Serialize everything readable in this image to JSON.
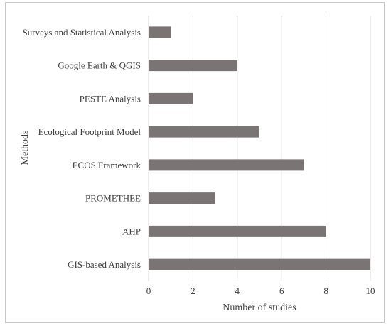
{
  "chart_data": {
    "type": "bar",
    "orientation": "horizontal",
    "categories": [
      "Surveys and Statistical Analysis",
      "Google Earth & QGIS",
      "PESTE Analysis",
      "Ecological Footprint Model",
      "ECOS Framework",
      "PROMETHEE",
      "AHP",
      "GIS-based Analysis"
    ],
    "values": [
      1,
      4,
      2,
      5,
      7,
      3,
      8,
      10
    ],
    "xlabel": "Number of studies",
    "ylabel": "Methods",
    "xlim": [
      0,
      10
    ],
    "xticks": [
      0,
      2,
      4,
      6,
      8,
      10
    ],
    "grid": "vertical",
    "legend": "none",
    "bar_color": "#7a7574"
  }
}
